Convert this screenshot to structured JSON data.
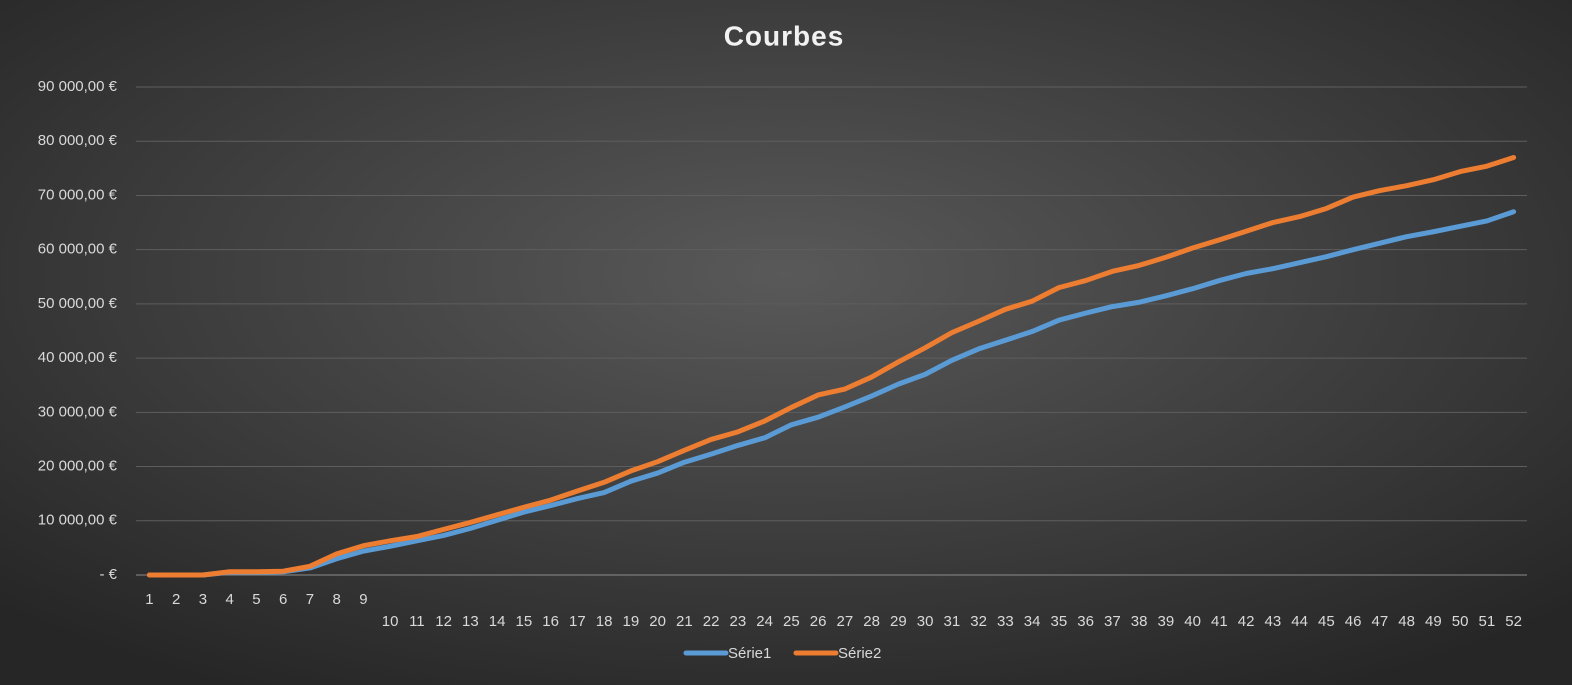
{
  "chart_data": {
    "type": "line",
    "title": "Courbes",
    "categories": [
      "1",
      "2",
      "3",
      "4",
      "5",
      "6",
      "7",
      "8",
      "9",
      "10",
      "11",
      "12",
      "13",
      "14",
      "15",
      "16",
      "17",
      "18",
      "19",
      "20",
      "21",
      "22",
      "23",
      "24",
      "25",
      "26",
      "27",
      "28",
      "29",
      "30",
      "31",
      "32",
      "33",
      "34",
      "35",
      "36",
      "37",
      "38",
      "39",
      "40",
      "41",
      "42",
      "43",
      "44",
      "45",
      "46",
      "47",
      "48",
      "49",
      "50",
      "51",
      "52"
    ],
    "series": [
      {
        "name": "Série1",
        "color": "#5b9bd5",
        "values": [
          0,
          0,
          0,
          500,
          500,
          600,
          1300,
          3000,
          4400,
          5300,
          6300,
          7300,
          8600,
          10100,
          11600,
          12800,
          14100,
          15200,
          17300,
          18800,
          20800,
          22300,
          23900,
          25300,
          27700,
          29100,
          31000,
          33000,
          35200,
          37000,
          39600,
          41700,
          43300,
          44900,
          47000,
          48300,
          49500,
          50300,
          51500,
          52800,
          54300,
          55600,
          56500,
          57600,
          58700,
          60000,
          61200,
          62400,
          63300,
          64300,
          65300,
          67000
        ]
      },
      {
        "name": "Série2",
        "color": "#ed7d31",
        "values": [
          0,
          0,
          0,
          600,
          600,
          700,
          1600,
          3900,
          5400,
          6300,
          7100,
          8400,
          9700,
          11100,
          12500,
          13800,
          15500,
          17100,
          19200,
          20900,
          23000,
          25000,
          26400,
          28400,
          30900,
          33200,
          34300,
          36500,
          39300,
          41900,
          44700,
          46800,
          49000,
          50500,
          53000,
          54300,
          56000,
          57100,
          58600,
          60300,
          61800,
          63400,
          65000,
          66100,
          67600,
          69700,
          70900,
          71800,
          72900,
          74400,
          75400,
          77000
        ]
      }
    ],
    "ylim": [
      0,
      90000
    ],
    "yticks": [
      {
        "value": 0,
        "label": "-  €"
      },
      {
        "value": 10000,
        "label": "10 000,00 €"
      },
      {
        "value": 20000,
        "label": "20 000,00 €"
      },
      {
        "value": 30000,
        "label": "30 000,00 €"
      },
      {
        "value": 40000,
        "label": "40 000,00 €"
      },
      {
        "value": 50000,
        "label": "50 000,00 €"
      },
      {
        "value": 60000,
        "label": "60 000,00 €"
      },
      {
        "value": 70000,
        "label": "70 000,00 €"
      },
      {
        "value": 80000,
        "label": "80 000,00 €"
      },
      {
        "value": 90000,
        "label": "90 000,00 €"
      }
    ],
    "grid": true,
    "legend": "bottom"
  }
}
